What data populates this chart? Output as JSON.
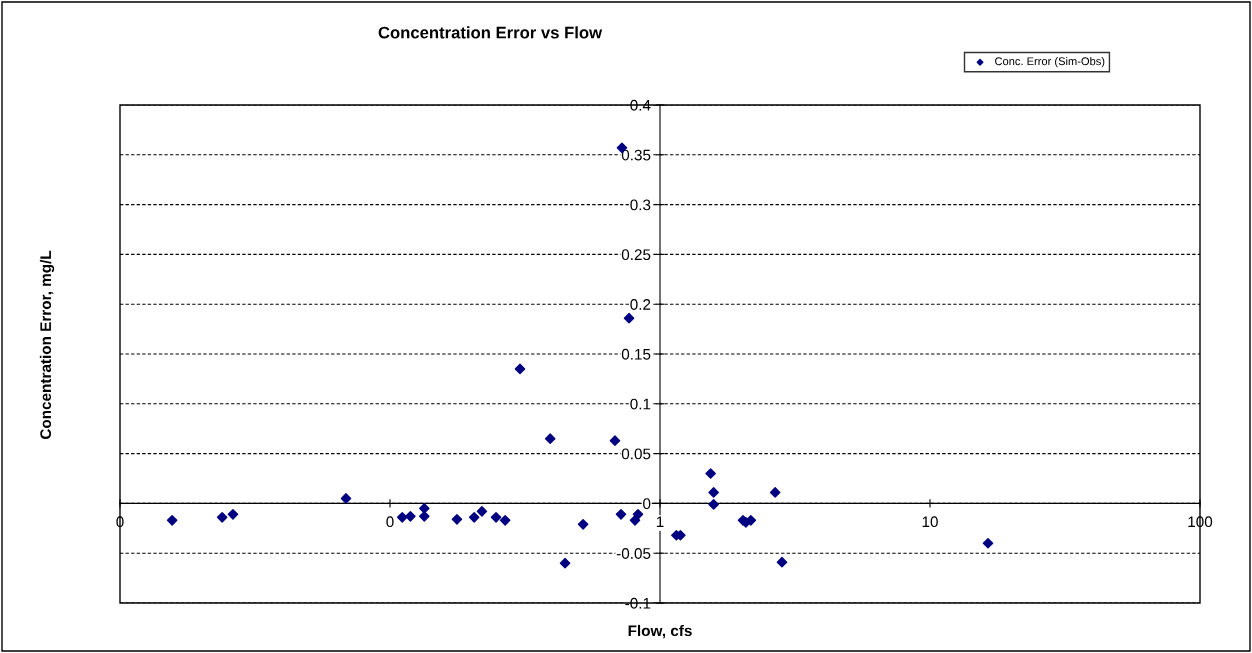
{
  "chart_data": {
    "type": "scatter",
    "title": "Concentration Error vs Flow",
    "xlabel": "Flow, cfs",
    "ylabel": "Concentration Error, mg/L",
    "log": "x",
    "xlim": [
      0.01,
      100
    ],
    "xticks": [
      {
        "value": 0.01,
        "label": "0"
      },
      {
        "value": 0.1,
        "label": "0"
      },
      1,
      10,
      100
    ],
    "ylim": [
      -0.1,
      0.4
    ],
    "yticks": [
      -0.1,
      -0.05,
      0,
      0.05,
      0.1,
      0.15,
      0.2,
      0.25,
      0.3,
      0.35,
      0.4
    ],
    "grid": "y",
    "legend": "top right",
    "marker": "diamond",
    "series": [
      {
        "name": "Conc. Error (Sim-Obs)",
        "color": "#000080",
        "x": [
          0.0156,
          0.0239,
          0.0262,
          0.0687,
          0.111,
          0.119,
          0.134,
          0.134,
          0.177,
          0.205,
          0.219,
          0.247,
          0.267,
          0.303,
          0.392,
          0.445,
          0.519,
          0.681,
          0.717,
          0.723,
          0.768,
          0.808,
          0.829,
          1.15,
          1.19,
          1.54,
          1.58,
          1.58,
          2.03,
          2.08,
          2.17,
          2.67,
          2.83,
          16.4
        ],
        "values": [
          -0.017,
          -0.014,
          -0.011,
          0.005,
          -0.014,
          -0.013,
          -0.013,
          -0.005,
          -0.016,
          -0.014,
          -0.008,
          -0.014,
          -0.017,
          0.135,
          0.065,
          -0.06,
          -0.021,
          0.063,
          -0.011,
          0.357,
          0.186,
          -0.017,
          -0.011,
          -0.032,
          -0.032,
          0.03,
          0.011,
          -0.001,
          -0.017,
          -0.019,
          -0.017,
          0.011,
          -0.059,
          -0.04
        ]
      }
    ]
  }
}
